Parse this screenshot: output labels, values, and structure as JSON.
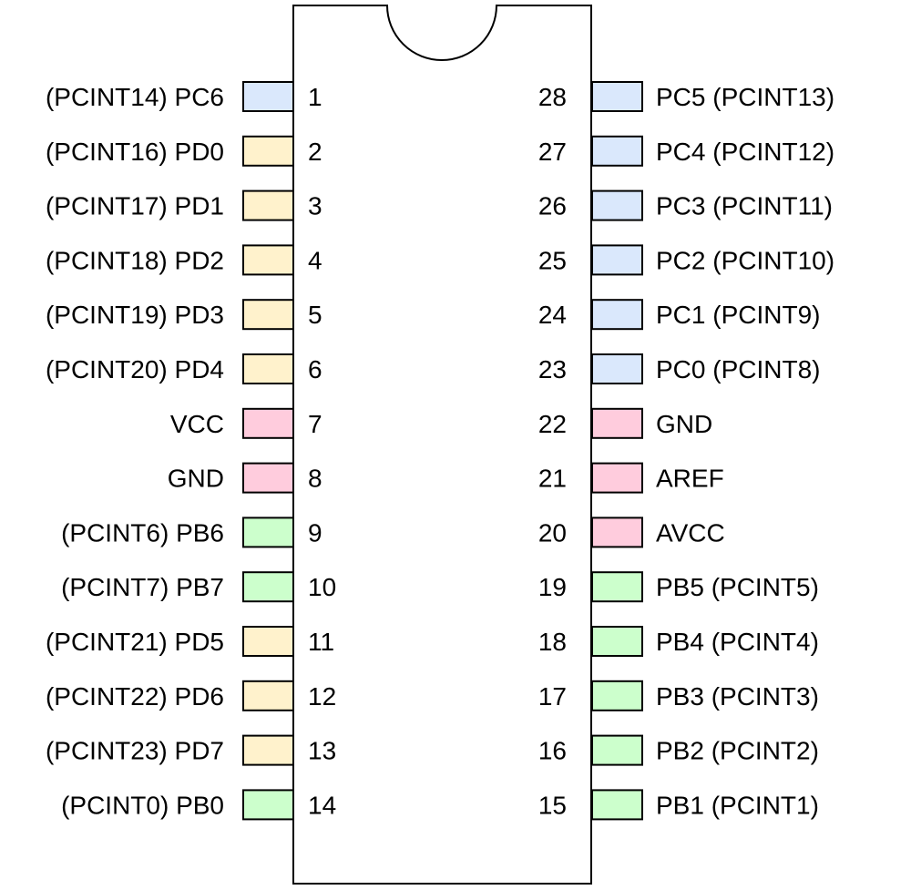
{
  "colors": {
    "PC": "#dae8fc",
    "PD": "#fff2cc",
    "POWER": "#ffccdd",
    "PB": "#ccffcc",
    "outline": "#000000"
  },
  "chip": {
    "left_pins": [
      {
        "number": "1",
        "label": "(PCINT14) PC6",
        "group": "PC"
      },
      {
        "number": "2",
        "label": "(PCINT16) PD0",
        "group": "PD"
      },
      {
        "number": "3",
        "label": "(PCINT17) PD1",
        "group": "PD"
      },
      {
        "number": "4",
        "label": "(PCINT18) PD2",
        "group": "PD"
      },
      {
        "number": "5",
        "label": "(PCINT19) PD3",
        "group": "PD"
      },
      {
        "number": "6",
        "label": "(PCINT20) PD4",
        "group": "PD"
      },
      {
        "number": "7",
        "label": "VCC",
        "group": "POWER"
      },
      {
        "number": "8",
        "label": "GND",
        "group": "POWER"
      },
      {
        "number": "9",
        "label": "(PCINT6) PB6",
        "group": "PB"
      },
      {
        "number": "10",
        "label": "(PCINT7) PB7",
        "group": "PB"
      },
      {
        "number": "11",
        "label": "(PCINT21) PD5",
        "group": "PD"
      },
      {
        "number": "12",
        "label": "(PCINT22) PD6",
        "group": "PD"
      },
      {
        "number": "13",
        "label": "(PCINT23) PD7",
        "group": "PD"
      },
      {
        "number": "14",
        "label": "(PCINT0) PB0",
        "group": "PB"
      }
    ],
    "right_pins": [
      {
        "number": "28",
        "label": "PC5 (PCINT13)",
        "group": "PC"
      },
      {
        "number": "27",
        "label": "PC4 (PCINT12)",
        "group": "PC"
      },
      {
        "number": "26",
        "label": "PC3 (PCINT11)",
        "group": "PC"
      },
      {
        "number": "25",
        "label": "PC2 (PCINT10)",
        "group": "PC"
      },
      {
        "number": "24",
        "label": "PC1 (PCINT9)",
        "group": "PC"
      },
      {
        "number": "23",
        "label": "PC0 (PCINT8)",
        "group": "PC"
      },
      {
        "number": "22",
        "label": "GND",
        "group": "POWER"
      },
      {
        "number": "21",
        "label": "AREF",
        "group": "POWER"
      },
      {
        "number": "20",
        "label": "AVCC",
        "group": "POWER"
      },
      {
        "number": "19",
        "label": "PB5 (PCINT5)",
        "group": "PB"
      },
      {
        "number": "18",
        "label": "PB4 (PCINT4)",
        "group": "PB"
      },
      {
        "number": "17",
        "label": "PB3 (PCINT3)",
        "group": "PB"
      },
      {
        "number": "16",
        "label": "PB2 (PCINT2)",
        "group": "PB"
      },
      {
        "number": "15",
        "label": "PB1 (PCINT1)",
        "group": "PB"
      }
    ]
  }
}
